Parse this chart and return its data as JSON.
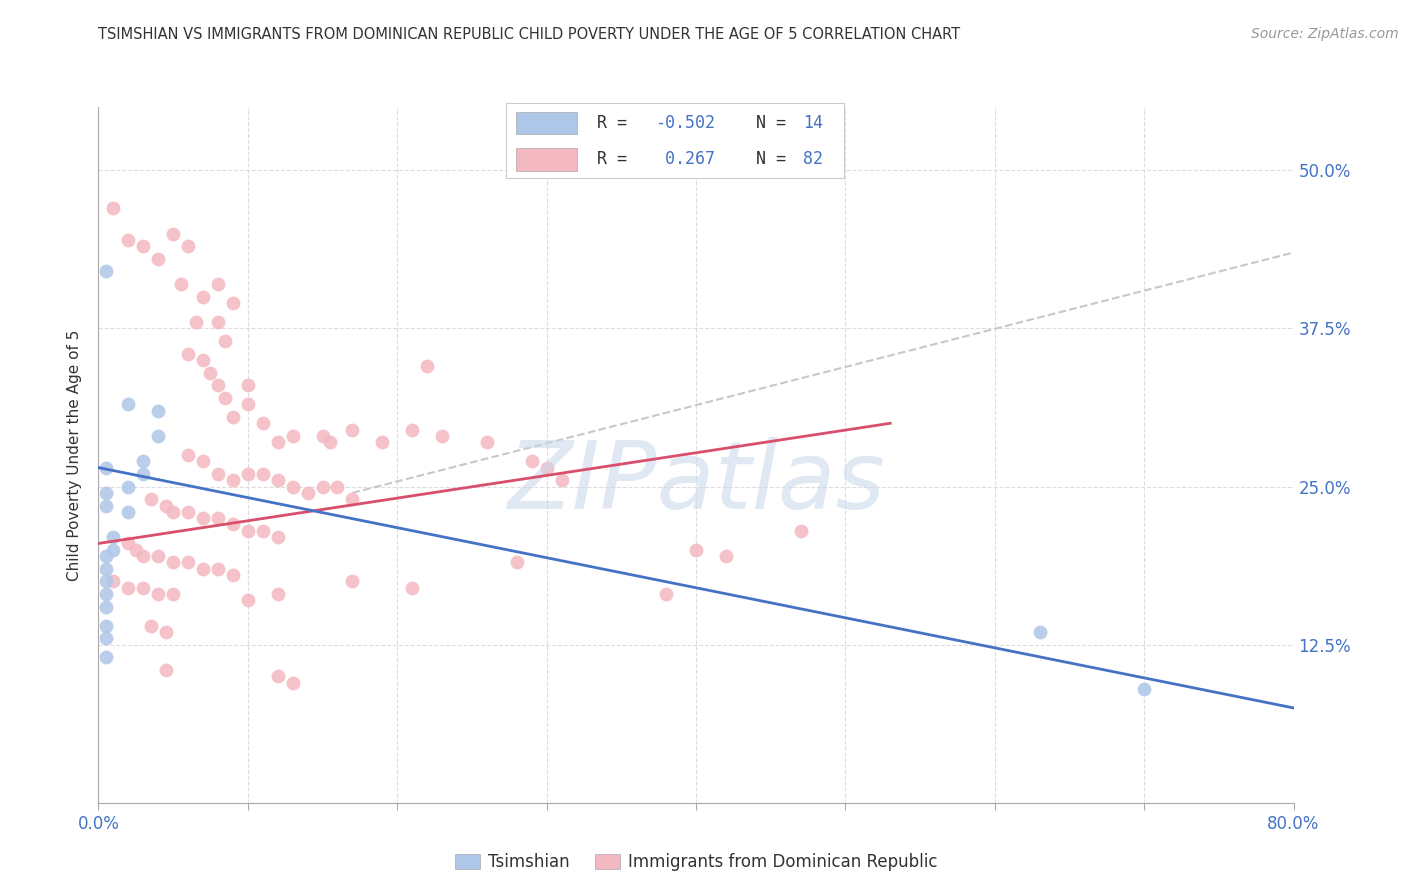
{
  "title": "TSIMSHIAN VS IMMIGRANTS FROM DOMINICAN REPUBLIC CHILD POVERTY UNDER THE AGE OF 5 CORRELATION CHART",
  "source": "Source: ZipAtlas.com",
  "ylabel": "Child Poverty Under the Age of 5",
  "xlabel_tsimshian": "Tsimshian",
  "xlabel_dominican": "Immigrants from Dominican Republic",
  "x_min": 0.0,
  "x_max": 0.8,
  "y_min": 0.0,
  "y_max": 0.55,
  "y_ticks": [
    0.0,
    0.125,
    0.25,
    0.375,
    0.5
  ],
  "y_tick_labels": [
    "",
    "12.5%",
    "25.0%",
    "37.5%",
    "50.0%"
  ],
  "tsimshian_color": "#aec6e8",
  "dominican_color": "#f4b8c1",
  "tsimshian_line_color": "#4472c4",
  "dominican_line_color": "#d94f6b",
  "trend_line_dashed_color": "#c8c8c8",
  "background_color": "#ffffff",
  "tsimshian_points": [
    [
      0.005,
      0.42
    ],
    [
      0.005,
      0.265
    ],
    [
      0.005,
      0.245
    ],
    [
      0.005,
      0.235
    ],
    [
      0.005,
      0.195
    ],
    [
      0.005,
      0.185
    ],
    [
      0.005,
      0.175
    ],
    [
      0.005,
      0.165
    ],
    [
      0.005,
      0.155
    ],
    [
      0.005,
      0.14
    ],
    [
      0.005,
      0.13
    ],
    [
      0.005,
      0.115
    ],
    [
      0.01,
      0.21
    ],
    [
      0.01,
      0.2
    ],
    [
      0.02,
      0.315
    ],
    [
      0.02,
      0.25
    ],
    [
      0.02,
      0.23
    ],
    [
      0.03,
      0.27
    ],
    [
      0.03,
      0.26
    ],
    [
      0.04,
      0.31
    ],
    [
      0.04,
      0.29
    ],
    [
      0.63,
      0.135
    ],
    [
      0.7,
      0.09
    ]
  ],
  "dominican_points": [
    [
      0.01,
      0.47
    ],
    [
      0.02,
      0.445
    ],
    [
      0.03,
      0.44
    ],
    [
      0.04,
      0.43
    ],
    [
      0.05,
      0.45
    ],
    [
      0.055,
      0.41
    ],
    [
      0.06,
      0.44
    ],
    [
      0.065,
      0.38
    ],
    [
      0.07,
      0.4
    ],
    [
      0.08,
      0.41
    ],
    [
      0.08,
      0.38
    ],
    [
      0.085,
      0.365
    ],
    [
      0.09,
      0.395
    ],
    [
      0.06,
      0.355
    ],
    [
      0.07,
      0.35
    ],
    [
      0.075,
      0.34
    ],
    [
      0.08,
      0.33
    ],
    [
      0.085,
      0.32
    ],
    [
      0.09,
      0.305
    ],
    [
      0.1,
      0.33
    ],
    [
      0.1,
      0.315
    ],
    [
      0.11,
      0.3
    ],
    [
      0.12,
      0.285
    ],
    [
      0.13,
      0.29
    ],
    [
      0.15,
      0.29
    ],
    [
      0.155,
      0.285
    ],
    [
      0.17,
      0.295
    ],
    [
      0.19,
      0.285
    ],
    [
      0.21,
      0.295
    ],
    [
      0.23,
      0.29
    ],
    [
      0.26,
      0.285
    ],
    [
      0.22,
      0.345
    ],
    [
      0.29,
      0.27
    ],
    [
      0.3,
      0.265
    ],
    [
      0.31,
      0.255
    ],
    [
      0.4,
      0.2
    ],
    [
      0.42,
      0.195
    ],
    [
      0.47,
      0.215
    ],
    [
      0.06,
      0.275
    ],
    [
      0.07,
      0.27
    ],
    [
      0.08,
      0.26
    ],
    [
      0.09,
      0.255
    ],
    [
      0.1,
      0.26
    ],
    [
      0.11,
      0.26
    ],
    [
      0.12,
      0.255
    ],
    [
      0.13,
      0.25
    ],
    [
      0.14,
      0.245
    ],
    [
      0.15,
      0.25
    ],
    [
      0.16,
      0.25
    ],
    [
      0.17,
      0.24
    ],
    [
      0.035,
      0.24
    ],
    [
      0.045,
      0.235
    ],
    [
      0.05,
      0.23
    ],
    [
      0.06,
      0.23
    ],
    [
      0.07,
      0.225
    ],
    [
      0.08,
      0.225
    ],
    [
      0.09,
      0.22
    ],
    [
      0.1,
      0.215
    ],
    [
      0.11,
      0.215
    ],
    [
      0.12,
      0.21
    ],
    [
      0.28,
      0.19
    ],
    [
      0.38,
      0.165
    ],
    [
      0.02,
      0.205
    ],
    [
      0.025,
      0.2
    ],
    [
      0.03,
      0.195
    ],
    [
      0.04,
      0.195
    ],
    [
      0.05,
      0.19
    ],
    [
      0.06,
      0.19
    ],
    [
      0.07,
      0.185
    ],
    [
      0.08,
      0.185
    ],
    [
      0.09,
      0.18
    ],
    [
      0.01,
      0.175
    ],
    [
      0.02,
      0.17
    ],
    [
      0.03,
      0.17
    ],
    [
      0.04,
      0.165
    ],
    [
      0.05,
      0.165
    ],
    [
      0.12,
      0.165
    ],
    [
      0.1,
      0.16
    ],
    [
      0.17,
      0.175
    ],
    [
      0.21,
      0.17
    ],
    [
      0.035,
      0.14
    ],
    [
      0.045,
      0.135
    ],
    [
      0.045,
      0.105
    ],
    [
      0.12,
      0.1
    ],
    [
      0.13,
      0.095
    ]
  ],
  "tsimshian_trend": {
    "x_start": 0.0,
    "y_start": 0.265,
    "x_end": 0.8,
    "y_end": 0.075
  },
  "dominican_trend": {
    "x_start": 0.0,
    "y_start": 0.205,
    "x_end": 0.53,
    "y_end": 0.3
  },
  "dashed_trend": {
    "x_start": 0.17,
    "y_start": 0.245,
    "x_end": 0.8,
    "y_end": 0.435
  }
}
